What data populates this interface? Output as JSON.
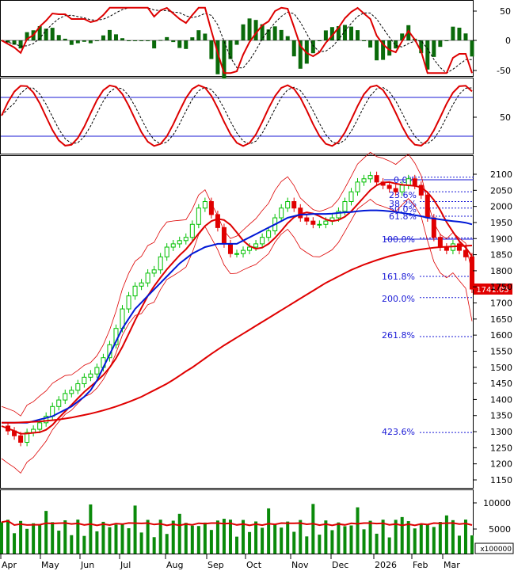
{
  "chart_data": {
    "type": "line",
    "months": [
      "Apr",
      "May",
      "Jun",
      "Jul",
      "Aug",
      "Sep",
      "Oct",
      "Nov",
      "Dec",
      "2026",
      "Feb",
      "Mar"
    ],
    "panels": {
      "macd": {
        "yticks": [
          "50",
          "0",
          "-50"
        ]
      },
      "stoch": {
        "yticks": [
          "50"
        ],
        "levels": [
          80,
          20
        ]
      },
      "price": {
        "yticks": [
          "2100",
          "2050",
          "2000",
          "1950",
          "1900",
          "1850",
          "1800",
          "1750",
          "1700",
          "1650",
          "1600",
          "1550",
          "1500",
          "1450",
          "1400",
          "1350",
          "1300",
          "1250",
          "1200",
          "1150"
        ],
        "last_price": "1741.05",
        "fib_labels": [
          {
            "label": "0.0%",
            "value": 2085
          },
          {
            "label": "23.6%",
            "value": 2040
          },
          {
            "label": "38.2%",
            "value": 2010
          },
          {
            "label": "50.0%",
            "value": 1990
          },
          {
            "label": "61.8%",
            "value": 1965
          },
          {
            "label": "100.0%",
            "value": 1898
          },
          {
            "label": "161.8%",
            "value": 1780
          },
          {
            "label": "200.0%",
            "value": 1715
          },
          {
            "label": "261.8%",
            "value": 1595
          },
          {
            "label": "423.6%",
            "value": 1300
          }
        ]
      },
      "volume": {
        "yticks": [
          "10000",
          "5000"
        ],
        "unit_label": "x100000"
      }
    },
    "series": [
      {
        "values": [
          1320,
          1305,
          1290,
          1270,
          1300,
          1310,
          1330,
          1350,
          1380,
          1400,
          1420,
          1430,
          1450,
          1470,
          1480,
          1500,
          1530,
          1570,
          1620,
          1680,
          1720,
          1750,
          1760,
          1790,
          1800,
          1840,
          1870,
          1880,
          1890,
          1900,
          1940,
          1990,
          2010,
          1970,
          1930,
          1880,
          1850,
          1850,
          1860,
          1870,
          1880,
          1900,
          1920,
          1960,
          1990,
          2010,
          1990,
          1960,
          1950,
          1940,
          1940,
          1950,
          1960,
          1980,
          2010,
          2040,
          2070,
          2080,
          2090,
          2070,
          2060,
          2050,
          2040,
          2060,
          2080,
          2060,
          2030,
          1960,
          1900,
          1870,
          1860,
          1880,
          1860,
          1840,
          1741
        ]
      },
      {
        "values": [
          1330,
          1330,
          1330,
          1330,
          1330,
          1335,
          1340,
          1345,
          1350,
          1360,
          1370,
          1380,
          1395,
          1410,
          1430,
          1460,
          1500,
          1540,
          1580,
          1620,
          1650,
          1680,
          1700,
          1720,
          1740,
          1760,
          1780,
          1800,
          1820,
          1835,
          1850,
          1860,
          1870,
          1875,
          1880,
          1880,
          1880,
          1880,
          1890,
          1900,
          1910,
          1920,
          1930,
          1940,
          1950,
          1960,
          1965,
          1970,
          1970,
          1972,
          1972,
          1972,
          1973,
          1975,
          1977,
          1978,
          1980,
          1982,
          1983,
          1983,
          1982,
          1980,
          1978,
          1975,
          1972,
          1968,
          1965,
          1960,
          1958,
          1955,
          1952,
          1950,
          1948,
          1945,
          1940
        ]
      },
      {
        "values": [
          1330,
          1330,
          1330,
          1331,
          1332,
          1333,
          1334,
          1336,
          1338,
          1340,
          1343,
          1346,
          1350,
          1354,
          1358,
          1363,
          1368,
          1374,
          1380,
          1387,
          1394,
          1402,
          1410,
          1420,
          1430,
          1440,
          1450,
          1462,
          1475,
          1488,
          1500,
          1514,
          1528,
          1542,
          1555,
          1568,
          1580,
          1592,
          1604,
          1616,
          1628,
          1640,
          1652,
          1664,
          1676,
          1688,
          1700,
          1712,
          1724,
          1736,
          1748,
          1760,
          1770,
          1780,
          1790,
          1800,
          1808,
          1816,
          1823,
          1830,
          1836,
          1842,
          1847,
          1852,
          1856,
          1860,
          1863,
          1866,
          1868,
          1870,
          1871,
          1872,
          1873,
          1874,
          1875
        ]
      }
    ],
    "fib_color": "#1a1ad6",
    "up_color": "#00c000",
    "down_color": "#e00000"
  }
}
